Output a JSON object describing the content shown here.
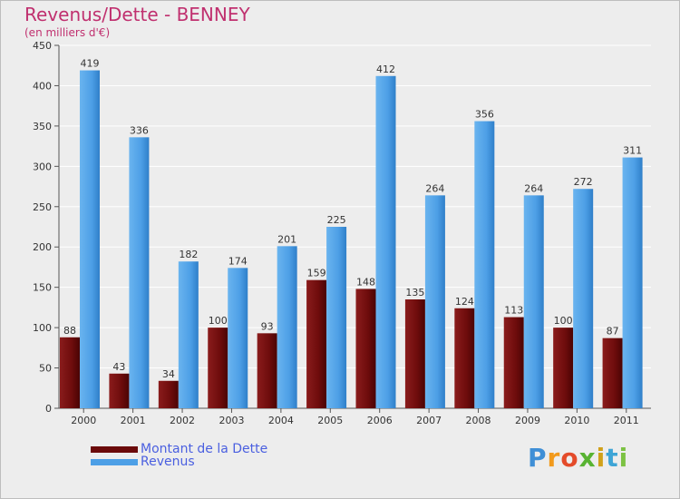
{
  "title": "Revenus/Dette - BENNEY",
  "subtitle": "(en milliers d'€)",
  "legend": [
    {
      "label": "Montant de la Dette",
      "color": "#6b0a0a"
    },
    {
      "label": "Revenus",
      "color": "#4d9fe6"
    }
  ],
  "brand": {
    "text": "Proxiti"
  },
  "chart_data": {
    "type": "bar",
    "categories": [
      "2000",
      "2001",
      "2002",
      "2003",
      "2004",
      "2005",
      "2006",
      "2007",
      "2008",
      "2009",
      "2010",
      "2011"
    ],
    "series": [
      {
        "name": "Montant de la Dette",
        "color": "#7a1010",
        "values": [
          88,
          43,
          34,
          100,
          93,
          159,
          148,
          135,
          124,
          113,
          100,
          87
        ]
      },
      {
        "name": "Revenus",
        "color": "#4d9fe6",
        "values": [
          419,
          336,
          182,
          174,
          201,
          225,
          412,
          264,
          356,
          264,
          272,
          311
        ]
      }
    ],
    "ylim": [
      0,
      450
    ],
    "yticks": [
      0,
      50,
      100,
      150,
      200,
      250,
      300,
      350,
      400,
      450
    ],
    "grid": true,
    "title": "Revenus/Dette - BENNEY",
    "ylabel": "(en milliers d'€)",
    "xlabel": ""
  }
}
